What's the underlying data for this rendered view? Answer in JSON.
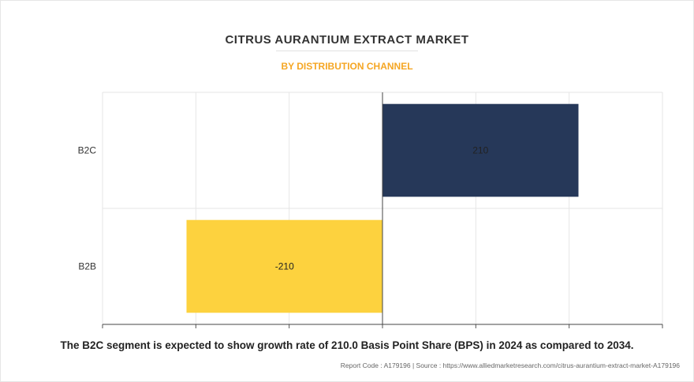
{
  "header": {
    "title": "CITRUS AURANTIUM EXTRACT MARKET",
    "subtitle": "BY DISTRIBUTION CHANNEL"
  },
  "chart_data": {
    "type": "bar",
    "orientation": "horizontal",
    "categories": [
      "B2C",
      "B2B"
    ],
    "values": [
      210,
      -210
    ],
    "data_labels": [
      "210",
      "-210"
    ],
    "colors": [
      "#263859",
      "#fdd23e"
    ],
    "xlim": [
      -300,
      300
    ],
    "grid": true
  },
  "footer": {
    "caption": "The B2C segment is expected to show growth rate of 210.0 Basis Point Share (BPS) in 2024 as compared to 2034.",
    "source": "Report Code : A179196  |  Source : https://www.alliedmarketresearch.com/citrus-aurantium-extract-market-A179196"
  }
}
